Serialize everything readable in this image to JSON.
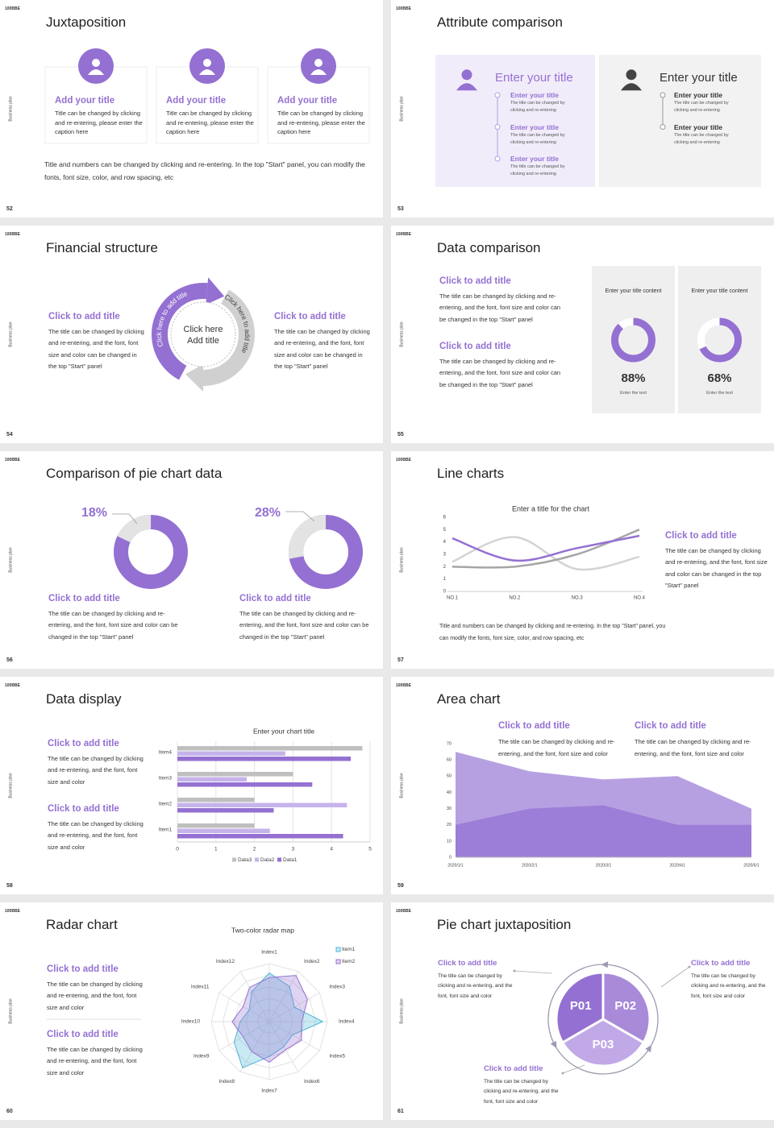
{
  "brand": "100BBE",
  "side_label": "Business plan",
  "slides": [
    {
      "number": "52",
      "title": "Juxtaposition",
      "cards": [
        {
          "title": "Add your title",
          "text": "Title can be changed by clicking and re-entering, please enter the caption here"
        },
        {
          "title": "Add your title",
          "text": "Title can be changed by clicking and re-entering, please enter the caption here"
        },
        {
          "title": "Add your title",
          "text": "Title can be changed by clicking and re-entering, please enter the caption here"
        }
      ],
      "footer": "Title and numbers can be changed by clicking and re-entering. In the top \"Start\" panel, you can modify the fonts, font size, color, and row spacing, etc"
    },
    {
      "number": "53",
      "title": "Attribute comparison",
      "panels": [
        {
          "heading": "Enter your title",
          "items": [
            {
              "title": "Enter your title",
              "text": "The title can be changed by clicking and re-entering"
            },
            {
              "title": "Enter your title",
              "text": "The title can be changed by clicking and re-entering"
            },
            {
              "title": "Enter your title",
              "text": "The title can be changed by clicking and re-entering"
            }
          ]
        },
        {
          "heading": "Enter your title",
          "items": [
            {
              "title": "Enter your title",
              "text": "The title can be changed by clicking and re-entering"
            },
            {
              "title": "Enter your title",
              "text": "The title can be changed by clicking and re-entering"
            }
          ]
        }
      ]
    },
    {
      "number": "54",
      "title": "Financial structure",
      "blocks": [
        {
          "title": "Click to add title",
          "text": "The title can be changed by clicking and re-entering, and the font, font size and color can be changed in the top \"Start\" panel"
        },
        {
          "title": "Click to add title",
          "text": "The title can be changed by clicking and re-entering, and the font, font size and color can be changed in the top \"Start\" panel"
        }
      ],
      "center": [
        "Click here",
        "Add title"
      ],
      "arc_labels": [
        "Click here to add title",
        "Click here to add title"
      ]
    },
    {
      "number": "55",
      "title": "Data comparison",
      "blocks": [
        {
          "title": "Click to add title",
          "text": "The title can be changed by clicking and re-entering, and the font, font size and color can be changed in the top \"Start\" panel"
        },
        {
          "title": "Click to add title",
          "text": "The title can be changed by clicking and re-entering, and the font, font size and color can be changed in the top \"Start\" panel"
        }
      ],
      "cards": [
        {
          "heading": "Enter your title content",
          "value": 88,
          "value_label": "88%",
          "caption": "Enter the text"
        },
        {
          "heading": "Enter your title content",
          "value": 68,
          "value_label": "68%",
          "caption": "Enter the text"
        }
      ]
    },
    {
      "number": "56",
      "title": "Comparison of pie chart data",
      "pies": [
        {
          "value": 18,
          "value_label": "18%",
          "title": "Click to add title",
          "text": "The title can be changed by clicking and re-entering, and the font, font size and color can be changed in the top \"Start\" panel"
        },
        {
          "value": 28,
          "value_label": "28%",
          "title": "Click to add title",
          "text": "The title can be changed by clicking and re-entering, and the font, font size and color can be changed in the top \"Start\" panel"
        }
      ]
    },
    {
      "number": "57",
      "title": "Line charts",
      "chart": {
        "type": "line",
        "title": "Enter a title for the chart",
        "categories": [
          "NO.1",
          "NO.2",
          "NO.3",
          "NO.4"
        ],
        "ylim": [
          0,
          6
        ],
        "yticks": [
          0,
          1,
          2,
          3,
          4,
          5,
          6
        ],
        "series": [
          {
            "color": "#d4d4d4",
            "values": [
              2.4,
              4.4,
              1.8,
              2.8
            ]
          },
          {
            "color": "#a6a6a6",
            "values": [
              2,
              2,
              3,
              5
            ]
          },
          {
            "color": "#9470d2",
            "values": [
              4.3,
              2.5,
              3.5,
              4.5
            ]
          }
        ]
      },
      "blocks": [
        {
          "title": "Click to add title",
          "text": "The title can be changed by clicking and re-entering, and the font, font size and color can be changed in the top \"Start\" panel"
        }
      ],
      "footer": "Title and numbers can be changed by clicking and re-entering. In the top \"Start\" panel, you can modify the fonts, font size, color, and row spacing, etc"
    },
    {
      "number": "58",
      "title": "Data display",
      "blocks": [
        {
          "title": "Click to add title",
          "text": "The title can be changed by clicking and re-entering, and the font, font size and color"
        },
        {
          "title": "Click to add title",
          "text": "The title can be changed by clicking and re-entering, and the font, font size and color"
        }
      ],
      "chart": {
        "type": "bar",
        "title": "Enter your chart title",
        "categories": [
          "Item1",
          "Item2",
          "Item3",
          "Item4"
        ],
        "xlim": [
          0,
          5
        ],
        "xticks": [
          0,
          1,
          2,
          3,
          4,
          5
        ],
        "grid": true,
        "series": [
          {
            "name": "Data3",
            "color": "#bfbfbf",
            "values": [
              2,
              2,
              3,
              4.8
            ]
          },
          {
            "name": "Data2",
            "color": "#c6b3ea",
            "values": [
              2.4,
              4.4,
              1.8,
              2.8
            ]
          },
          {
            "name": "Data1",
            "color": "#9470d2",
            "values": [
              4.3,
              2.5,
              3.5,
              4.5
            ]
          }
        ]
      }
    },
    {
      "number": "59",
      "title": "Area chart",
      "blocks": [
        {
          "title": "Click to add title",
          "text": "The title can be changed by clicking and re-entering, and the font, font size and color"
        },
        {
          "title": "Click to add title",
          "text": "The title can be changed by clicking and re-entering, and the font, font size and color"
        }
      ],
      "chart": {
        "type": "area",
        "categories": [
          "2020/1/1",
          "2020/2/1",
          "2020/3/1",
          "2020/4/1",
          "2020/5/1"
        ],
        "ylim": [
          0,
          70
        ],
        "yticks": [
          0,
          10,
          20,
          30,
          40,
          50,
          60,
          70
        ],
        "series": [
          {
            "color": "#b7a0e2",
            "values": [
              65,
              53,
              48,
              50,
              30
            ]
          },
          {
            "color": "#9c7dd7",
            "values": [
              20,
              30,
              32,
              20,
              20
            ]
          }
        ]
      }
    },
    {
      "number": "60",
      "title": "Radar chart",
      "blocks": [
        {
          "title": "Click to add title",
          "text": "The title can be changed by clicking and re-entering, and the font, font size and color"
        },
        {
          "title": "Click to add title",
          "text": "The title can be changed by clicking and re-entering, and the font, font size and color"
        }
      ],
      "chart": {
        "type": "radar",
        "title": "Two-color radar map",
        "categories": [
          "Index1",
          "Index2",
          "Index3",
          "Index4",
          "Index5",
          "Index6",
          "Index7",
          "Index8",
          "Index9",
          "Index10",
          "Index11",
          "Index12"
        ],
        "rlim": [
          0,
          5
        ],
        "series": [
          {
            "name": "Item1",
            "color": "#4db6d8",
            "values": [
              4.2,
              3.5,
              2.5,
              4.6,
              2.3,
              2.5,
              3,
              4.6,
              3.5,
              2.5,
              2,
              3
            ]
          },
          {
            "name": "Item2",
            "color": "#9470d2",
            "values": [
              3.8,
              4.6,
              3.8,
              2.8,
              3.2,
              2.8,
              3.5,
              3,
              2.6,
              3.2,
              2.6,
              3.4
            ]
          }
        ]
      }
    },
    {
      "number": "61",
      "title": "Pie chart juxtaposition",
      "slices": [
        "P01",
        "P02",
        "P03"
      ],
      "blocks": [
        {
          "title": "Click to add title",
          "text": "The title can be changed by clicking and re-entering, and the font, font size and color"
        },
        {
          "title": "Click to add title",
          "text": "The title can be changed by clicking and re-entering, and the font, font size and color"
        },
        {
          "title": "Click to add title",
          "text": "The title can be changed by clicking and re-entering, and the font, font size and color"
        }
      ]
    }
  ]
}
